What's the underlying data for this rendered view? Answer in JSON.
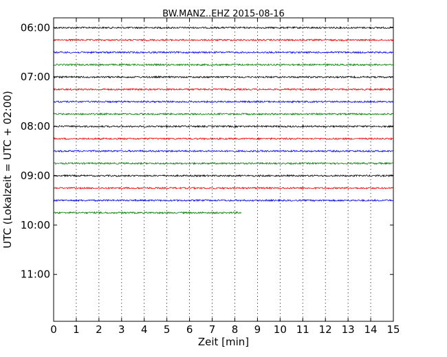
{
  "chart_data": {
    "type": "line",
    "title": "BW.MANZ..EHZ 2015-08-16",
    "xlabel": "Zeit  [min]",
    "ylabel": "UTC (Lokalzeit = UTC + 02:00)",
    "xlim": [
      0,
      15
    ],
    "ylim_hours": [
      5.8,
      11.95
    ],
    "x_ticks": [
      "0",
      "1",
      "2",
      "3",
      "4",
      "5",
      "6",
      "7",
      "8",
      "9",
      "10",
      "11",
      "12",
      "13",
      "14",
      "15"
    ],
    "y_ticks": [
      {
        "label": "06:00",
        "hour": 6
      },
      {
        "label": "07:00",
        "hour": 7
      },
      {
        "label": "08:00",
        "hour": 8
      },
      {
        "label": "09:00",
        "hour": 9
      },
      {
        "label": "10:00",
        "hour": 10
      },
      {
        "label": "11:00",
        "hour": 11
      }
    ],
    "grid": "vertical-dotted",
    "trace_colors": [
      "#000000",
      "#ff0000",
      "#0000ff",
      "#007f00"
    ],
    "traces": [
      {
        "start": "06:00",
        "hour": 6.0,
        "end_min": 15,
        "color": "#000000"
      },
      {
        "start": "06:15",
        "hour": 6.25,
        "end_min": 15,
        "color": "#ff0000"
      },
      {
        "start": "06:30",
        "hour": 6.5,
        "end_min": 15,
        "color": "#0000ff"
      },
      {
        "start": "06:45",
        "hour": 6.75,
        "end_min": 15,
        "color": "#007f00"
      },
      {
        "start": "07:00",
        "hour": 7.0,
        "end_min": 15,
        "color": "#000000"
      },
      {
        "start": "07:15",
        "hour": 7.25,
        "end_min": 15,
        "color": "#ff0000"
      },
      {
        "start": "07:30",
        "hour": 7.5,
        "end_min": 15,
        "color": "#0000ff"
      },
      {
        "start": "07:45",
        "hour": 7.75,
        "end_min": 15,
        "color": "#007f00"
      },
      {
        "start": "08:00",
        "hour": 8.0,
        "end_min": 15,
        "color": "#000000"
      },
      {
        "start": "08:15",
        "hour": 8.25,
        "end_min": 15,
        "color": "#ff0000"
      },
      {
        "start": "08:30",
        "hour": 8.5,
        "end_min": 15,
        "color": "#0000ff"
      },
      {
        "start": "08:45",
        "hour": 8.75,
        "end_min": 15,
        "color": "#007f00"
      },
      {
        "start": "09:00",
        "hour": 9.0,
        "end_min": 15,
        "color": "#000000"
      },
      {
        "start": "09:15",
        "hour": 9.25,
        "end_min": 15,
        "color": "#ff0000"
      },
      {
        "start": "09:30",
        "hour": 9.5,
        "end_min": 15,
        "color": "#0000ff"
      },
      {
        "start": "09:45",
        "hour": 9.75,
        "end_min": 8.3,
        "color": "#007f00"
      }
    ]
  }
}
